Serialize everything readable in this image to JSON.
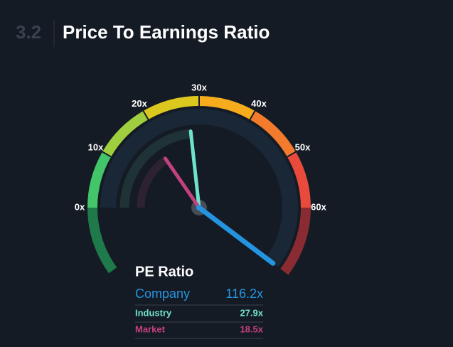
{
  "header": {
    "section": "3.2",
    "title": "Price To Earnings Ratio"
  },
  "chart_data": {
    "type": "gauge",
    "range": [
      0,
      60
    ],
    "ticks": [
      {
        "value": 0,
        "label": "0x"
      },
      {
        "value": 10,
        "label": "10x"
      },
      {
        "value": 20,
        "label": "20x"
      },
      {
        "value": 30,
        "label": "30x"
      },
      {
        "value": 40,
        "label": "40x"
      },
      {
        "value": 50,
        "label": "50x"
      },
      {
        "value": 60,
        "label": "60x"
      }
    ],
    "band_colors": [
      "#43c66a",
      "#9fcf3f",
      "#dcc71e",
      "#f6ac1c",
      "#f27b2c",
      "#e84a3c"
    ],
    "low_color": "#1f7a4b",
    "high_color": "#8a2b33",
    "legend_title": "PE Ratio",
    "series": [
      {
        "name": "Company",
        "color": "#2594e0",
        "track_color": "#192737",
        "values": [
          116.2
        ],
        "value_labels": [
          "116.2x"
        ]
      },
      {
        "name": "Industry",
        "color": "#6fe2cb",
        "track_color": "#1f3236",
        "values": [
          27.9
        ],
        "value_labels": [
          "27.9x"
        ]
      },
      {
        "name": "Market",
        "color": "#c4417f",
        "track_color": "#2e2230",
        "values": [
          18.5
        ],
        "value_labels": [
          "18.5x"
        ]
      }
    ]
  }
}
